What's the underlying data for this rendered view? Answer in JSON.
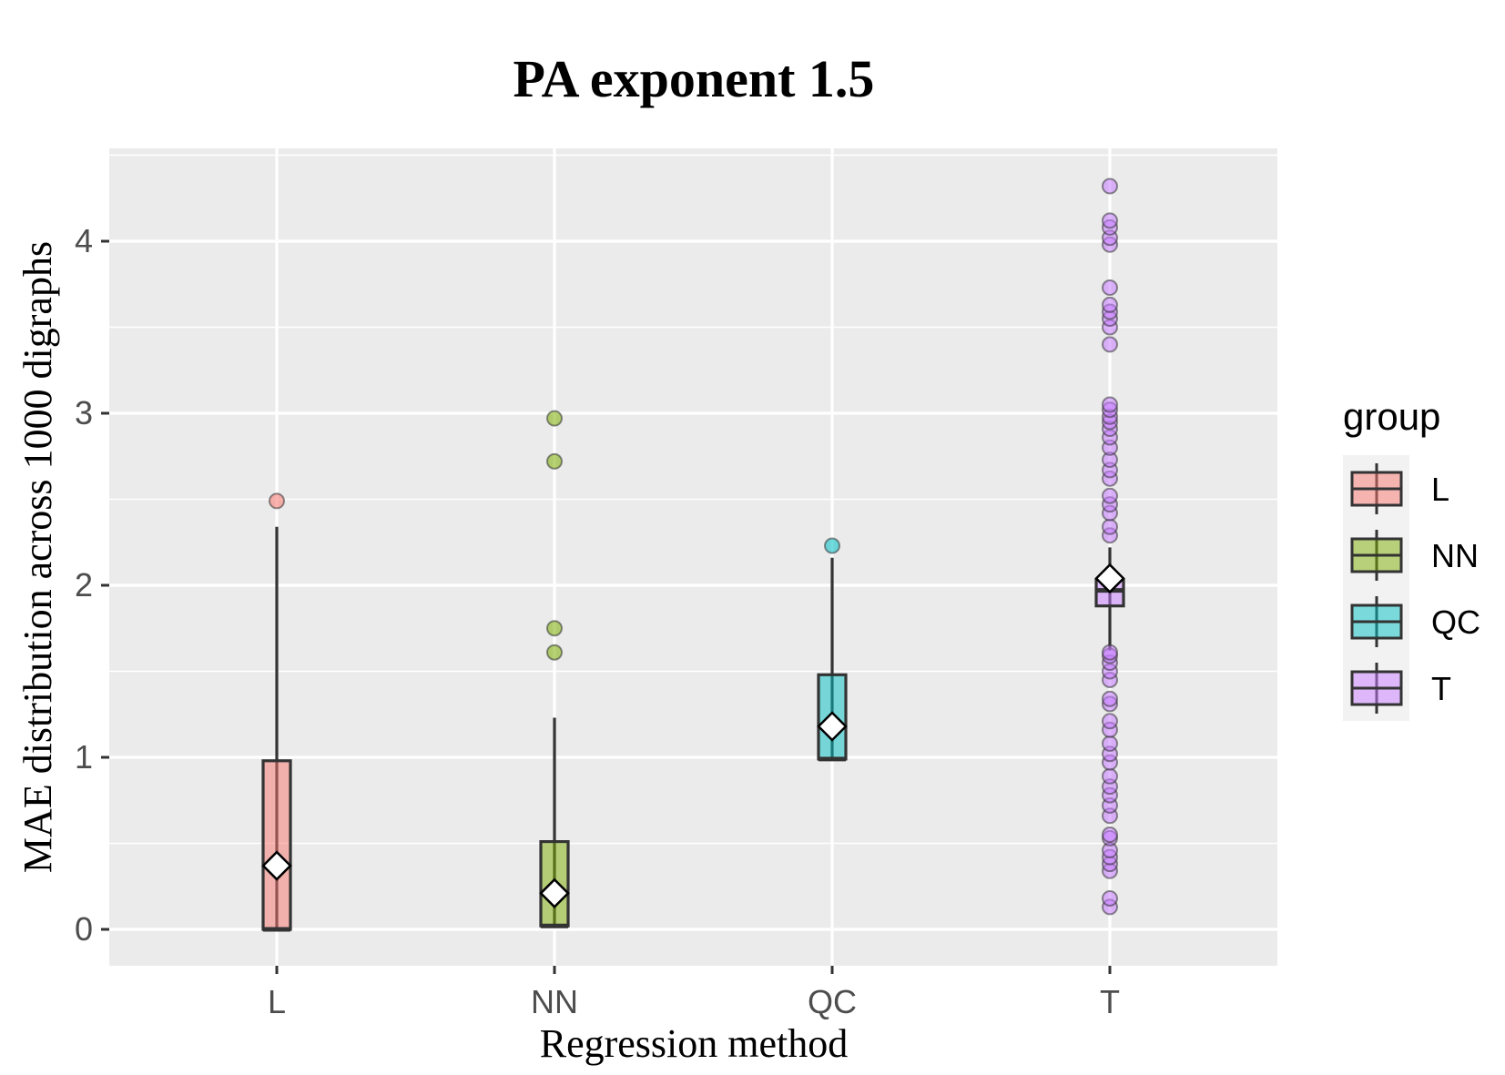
{
  "chart_data": {
    "type": "boxplot",
    "title": "PA exponent 1.5",
    "xlabel": "Regression method",
    "ylabel": "MAE distribution across 1000 digraphs",
    "ylim": [
      -0.2,
      4.55
    ],
    "yticks": [
      0,
      1,
      2,
      3,
      4
    ],
    "grid": true,
    "legend": {
      "title": "group",
      "position": "right"
    },
    "groups": [
      {
        "name": "L",
        "color": "#F8766D",
        "q1": 0.0,
        "median": 0.0,
        "q3": 0.98,
        "whisker_low": 0.0,
        "whisker_high": 2.34,
        "mean": 0.37,
        "outliers": [
          2.49
        ]
      },
      {
        "name": "NN",
        "color": "#7CAE00",
        "q1": 0.02,
        "median": 0.02,
        "q3": 0.51,
        "whisker_low": 0.02,
        "whisker_high": 1.23,
        "mean": 0.21,
        "outliers": [
          1.61,
          1.75,
          2.72,
          2.97
        ]
      },
      {
        "name": "QC",
        "color": "#00BFC4",
        "q1": 0.99,
        "median": 0.99,
        "q3": 1.48,
        "whisker_low": 0.99,
        "whisker_high": 2.16,
        "mean": 1.18,
        "outliers": [
          2.23
        ]
      },
      {
        "name": "T",
        "color": "#C77CFF",
        "q1": 1.88,
        "median": 1.97,
        "q3": 2.03,
        "whisker_low": 1.62,
        "whisker_high": 2.22,
        "mean": 2.04,
        "outliers": [
          0.13,
          0.18,
          0.34,
          0.38,
          0.42,
          0.46,
          0.53,
          0.55,
          0.66,
          0.72,
          0.78,
          0.83,
          0.89,
          0.97,
          1.02,
          1.08,
          1.16,
          1.21,
          1.31,
          1.34,
          1.45,
          1.5,
          1.55,
          1.59,
          1.61,
          2.29,
          2.34,
          2.42,
          2.47,
          2.52,
          2.62,
          2.67,
          2.73,
          2.8,
          2.86,
          2.91,
          2.95,
          2.98,
          3.02,
          3.05,
          3.4,
          3.5,
          3.55,
          3.59,
          3.63,
          3.73,
          3.98,
          4.02,
          4.08,
          4.12,
          4.32
        ]
      }
    ]
  }
}
